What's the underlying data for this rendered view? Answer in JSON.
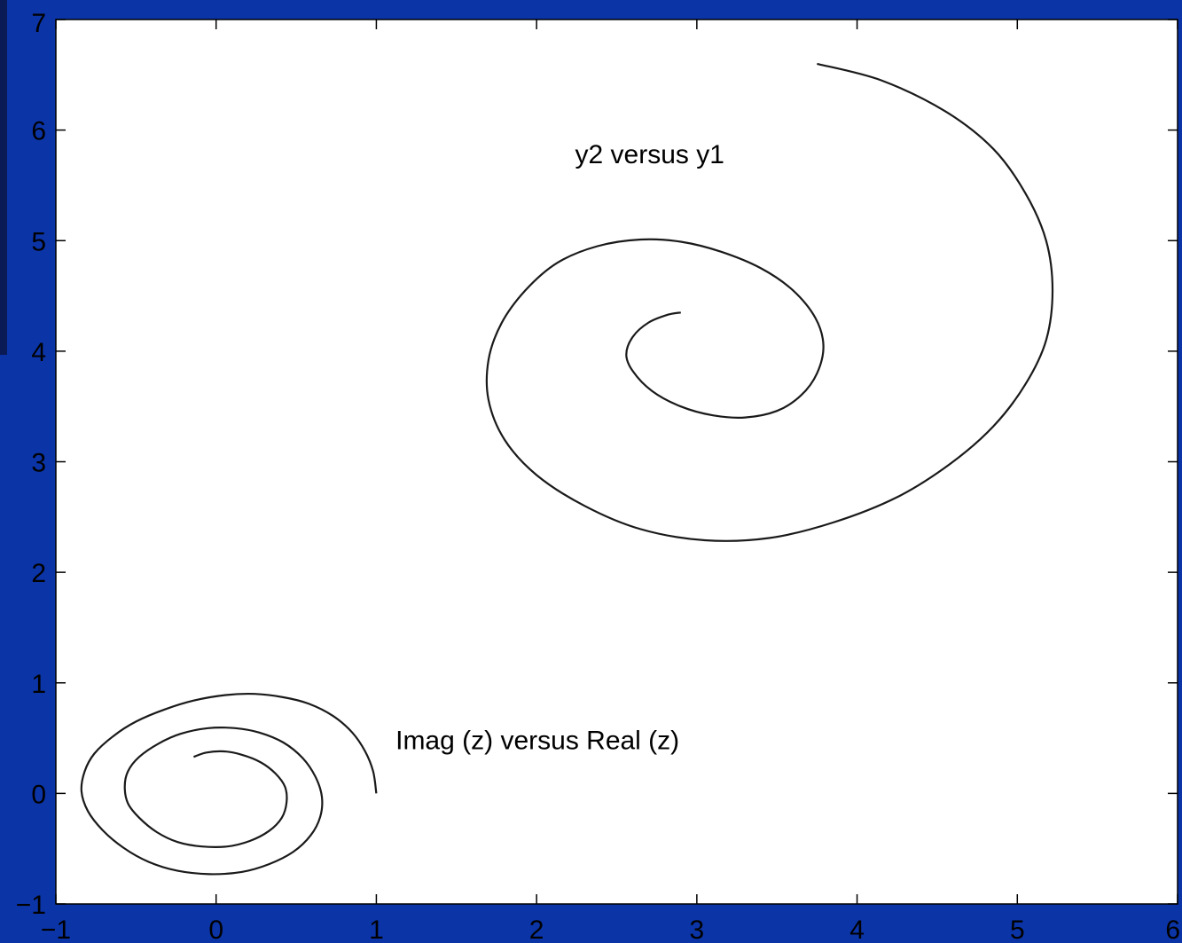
{
  "colors": {
    "background_blue": "#0b34a6",
    "background_dark": "#0a1a55",
    "plot_area": "#ffffff",
    "curve": "#1a1a1a"
  },
  "chart_data": {
    "type": "line",
    "title": "",
    "xlabel": "",
    "ylabel": "",
    "xlim": [
      -1,
      6
    ],
    "ylim": [
      -1,
      7
    ],
    "grid": false,
    "legend": "none",
    "xticks": [
      -1,
      0,
      1,
      2,
      3,
      4,
      5,
      6
    ],
    "yticks": [
      -1,
      0,
      1,
      2,
      3,
      4,
      5,
      6,
      7
    ],
    "xtick_labels": [
      "−1",
      "0",
      "1",
      "2",
      "3",
      "4",
      "5",
      "6"
    ],
    "ytick_labels": [
      "−1",
      "0",
      "1",
      "2",
      "3",
      "4",
      "5",
      "6",
      "7"
    ],
    "annotations": [
      {
        "text": "y2 versus y1",
        "x": 2.24,
        "y": 5.7
      },
      {
        "text": "Imag (z) versus Real (z)",
        "x": 1.12,
        "y": 0.4
      }
    ],
    "series": [
      {
        "x": [
          1.0,
          0.98,
          0.93,
          0.85,
          0.73,
          0.58,
          0.42,
          0.24,
          0.06,
          -0.14,
          -0.32,
          -0.5,
          -0.64,
          -0.76,
          -0.82,
          -0.84,
          -0.8,
          -0.71,
          -0.58,
          -0.42,
          -0.24,
          -0.04,
          0.16,
          0.33,
          0.48,
          0.59,
          0.65,
          0.66,
          0.62,
          0.54,
          0.42,
          0.27,
          0.12,
          -0.05,
          -0.22,
          -0.36,
          -0.48,
          -0.55,
          -0.57,
          -0.55,
          -0.48,
          -0.37,
          -0.24,
          -0.09,
          0.07,
          0.21,
          0.33,
          0.41,
          0.44,
          0.43,
          0.37,
          0.28,
          0.16,
          0.05,
          -0.06,
          -0.14
        ],
        "y": [
          0.0,
          0.2,
          0.38,
          0.55,
          0.7,
          0.81,
          0.87,
          0.9,
          0.89,
          0.84,
          0.76,
          0.65,
          0.52,
          0.36,
          0.2,
          0.02,
          -0.16,
          -0.33,
          -0.49,
          -0.62,
          -0.7,
          -0.73,
          -0.71,
          -0.64,
          -0.53,
          -0.38,
          -0.21,
          -0.03,
          0.15,
          0.32,
          0.46,
          0.55,
          0.59,
          0.59,
          0.54,
          0.45,
          0.33,
          0.2,
          0.06,
          -0.09,
          -0.22,
          -0.35,
          -0.44,
          -0.48,
          -0.48,
          -0.43,
          -0.34,
          -0.22,
          -0.08,
          0.06,
          0.18,
          0.28,
          0.35,
          0.38,
          0.37,
          0.33
        ]
      },
      {
        "x": [
          3.75,
          4.15,
          4.55,
          4.85,
          5.05,
          5.18,
          5.22,
          5.18,
          5.05,
          4.85,
          4.58,
          4.25,
          3.85,
          3.45,
          3.05,
          2.65,
          2.3,
          2.0,
          1.8,
          1.7,
          1.7,
          1.78,
          1.93,
          2.13,
          2.38,
          2.65,
          2.9,
          3.15,
          3.4,
          3.6,
          3.74,
          3.79,
          3.75,
          3.65,
          3.5,
          3.3,
          3.1,
          2.9,
          2.72,
          2.6,
          2.56,
          2.6,
          2.7,
          2.82,
          2.9
        ],
        "y": [
          6.6,
          6.45,
          6.17,
          5.83,
          5.43,
          5.0,
          4.55,
          4.1,
          3.7,
          3.32,
          2.98,
          2.68,
          2.45,
          2.31,
          2.29,
          2.39,
          2.6,
          2.88,
          3.2,
          3.56,
          3.92,
          4.25,
          4.55,
          4.8,
          4.95,
          5.01,
          4.99,
          4.9,
          4.75,
          4.55,
          4.3,
          4.05,
          3.8,
          3.6,
          3.46,
          3.4,
          3.42,
          3.5,
          3.64,
          3.82,
          3.97,
          4.13,
          4.26,
          4.33,
          4.35
        ]
      }
    ]
  }
}
